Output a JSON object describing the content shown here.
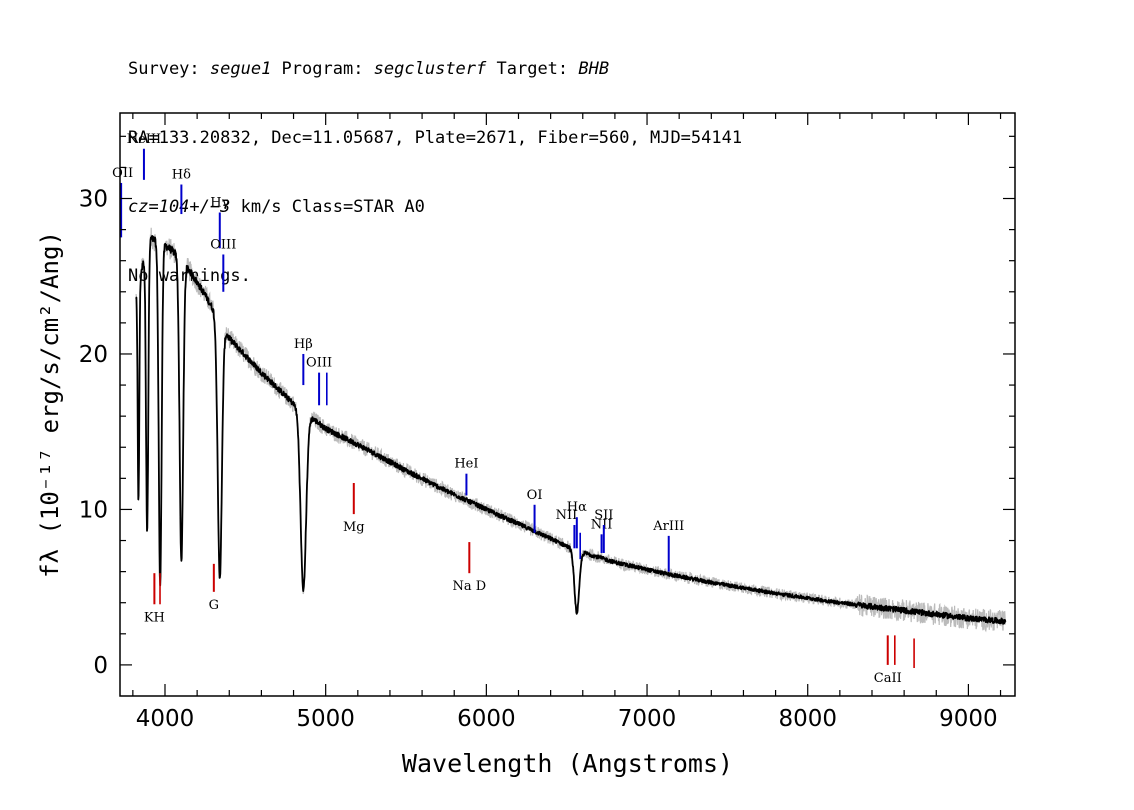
{
  "header": {
    "line1": {
      "survey_label": "Survey: ",
      "survey": "segue1",
      "program_label": " Program: ",
      "program": "segclusterf",
      "target_label": " Target: ",
      "target": "BHB"
    },
    "line2": "RA=133.20832, Dec=11.05687, Plate=2671, Fiber=560, MJD=54141",
    "line3": {
      "cz": "cz=104+/−3",
      "rest": " km/s Class=STAR A0"
    },
    "line4": "No warnings."
  },
  "chart_data": {
    "type": "line",
    "title": "",
    "xlabel": "Wavelength (Angstroms)",
    "ylabel": "fλ (10⁻¹⁷ erg/s/cm²/Ang)",
    "xlim": [
      3720,
      9290
    ],
    "ylim": [
      -2,
      35.5
    ],
    "xticks": [
      4000,
      5000,
      6000,
      7000,
      8000,
      9000
    ],
    "yticks": [
      0,
      10,
      20,
      30
    ],
    "grid": false,
    "colors": {
      "flux": "#000000",
      "noise": "#bbbbbb",
      "emission": "#0000cc",
      "absorption": "#cc0000",
      "axes": "#000000"
    },
    "continuum": {
      "x": [
        3820,
        3900,
        4000,
        4100,
        4250,
        4400,
        4600,
        4800,
        5000,
        5250,
        5500,
        5750,
        6000,
        6300,
        6550,
        6800,
        7100,
        7400,
        7800,
        8200,
        8600,
        9000,
        9230
      ],
      "y": [
        23.8,
        27.5,
        27.0,
        26.2,
        23.8,
        21.0,
        18.8,
        16.8,
        15.2,
        13.9,
        12.5,
        11.2,
        10.0,
        8.6,
        7.4,
        6.6,
        5.9,
        5.3,
        4.6,
        4.0,
        3.5,
        3.0,
        2.8
      ]
    },
    "absorption_lines": [
      {
        "center": 3835,
        "depth": 14.0,
        "width": 5
      },
      {
        "center": 3889,
        "depth": 18.5,
        "width": 7
      },
      {
        "center": 3970,
        "depth": 22.0,
        "width": 9
      },
      {
        "center": 4102,
        "depth": 19.5,
        "width": 11
      },
      {
        "center": 4341,
        "depth": 16.5,
        "width": 13
      },
      {
        "center": 4861,
        "depth": 11.5,
        "width": 17
      },
      {
        "center": 6563,
        "depth": 4.0,
        "width": 15
      }
    ],
    "emission_markers": [
      {
        "label": "NeIII",
        "x": 3869,
        "y_top": 33.2,
        "y_bottom": 31.2
      },
      {
        "label": "Hδ",
        "x": 4102,
        "y_top": 30.9,
        "y_bottom": 29.0
      },
      {
        "label": "Hγ",
        "x": 4341,
        "y_top": 29.1,
        "y_bottom": 26.8
      },
      {
        "label": "OIII",
        "x": 4363,
        "y_top": 26.4,
        "y_bottom": 24.0
      },
      {
        "label": "Hβ",
        "x": 4861,
        "y_top": 20.0,
        "y_bottom": 18.0
      },
      {
        "label": "OIII",
        "x": 4959,
        "y_top": 18.8,
        "y_bottom": 16.7
      },
      {
        "label": "",
        "x": 5007,
        "y_top": 18.8,
        "y_bottom": 16.7
      },
      {
        "label": "HeI",
        "x": 5876,
        "y_top": 12.3,
        "y_bottom": 10.9
      },
      {
        "label": "OI",
        "x": 6300,
        "y_top": 10.3,
        "y_bottom": 8.5
      },
      {
        "label": "NII",
        "x": 6548,
        "y_top": 9.0,
        "y_bottom": 7.5
      },
      {
        "label": "Hα",
        "x": 6563,
        "y_top": 9.5,
        "y_bottom": 7.5
      },
      {
        "label": "",
        "x": 6584,
        "y_top": 8.5,
        "y_bottom": 6.8
      },
      {
        "label": "NII",
        "x": 6717,
        "y_top": 8.4,
        "y_bottom": 7.2
      },
      {
        "label": "SII",
        "x": 6731,
        "y_top": 9.0,
        "y_bottom": 7.2
      },
      {
        "label": "ArIII",
        "x": 7135,
        "y_top": 8.3,
        "y_bottom": 6.0
      },
      {
        "label": "OII",
        "x": 3727,
        "y_top": 31.0,
        "y_bottom": 27.5
      }
    ],
    "absorption_markers": [
      {
        "label": "KH",
        "x": 3934,
        "y_top": 5.9,
        "y_bottom": 3.9
      },
      {
        "label": "",
        "x": 3969,
        "y_top": 5.9,
        "y_bottom": 3.9
      },
      {
        "label": "G",
        "x": 4304,
        "y_top": 6.5,
        "y_bottom": 4.7
      },
      {
        "label": "Mg",
        "x": 5175,
        "y_top": 11.7,
        "y_bottom": 9.7
      },
      {
        "label": "Na D",
        "x": 5894,
        "y_top": 7.9,
        "y_bottom": 5.9
      },
      {
        "label": "CaII",
        "x": 8498,
        "y_top": 1.9,
        "y_bottom": 0.0
      },
      {
        "label": "",
        "x": 8542,
        "y_top": 1.9,
        "y_bottom": 0.0
      },
      {
        "label": "",
        "x": 8662,
        "y_top": 1.7,
        "y_bottom": -0.2
      }
    ]
  }
}
